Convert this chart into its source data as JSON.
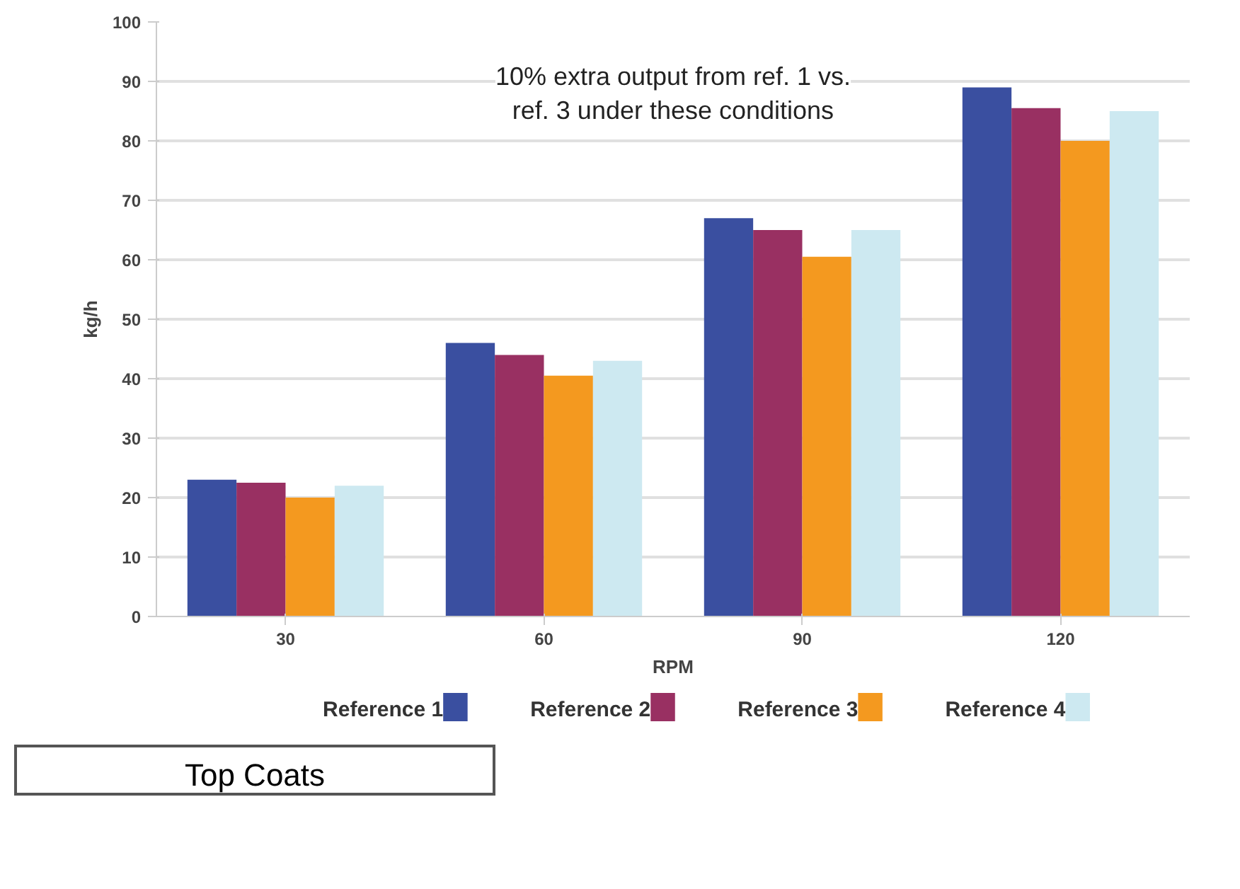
{
  "chart_data": {
    "type": "bar",
    "xlabel": "RPM",
    "ylabel": "kg/h",
    "categories": [
      "30",
      "60",
      "90",
      "120"
    ],
    "series": [
      {
        "name": "Reference 1",
        "color": "#3a4fa0",
        "values": [
          23,
          46,
          67,
          89
        ]
      },
      {
        "name": "Reference 2",
        "color": "#993062",
        "values": [
          22.5,
          44,
          65,
          85.5
        ]
      },
      {
        "name": "Reference 3",
        "color": "#f4991f",
        "values": [
          20,
          40.5,
          60.5,
          80
        ]
      },
      {
        "name": "Reference 4",
        "color": "#cde9f1",
        "values": [
          22,
          43,
          65,
          85
        ]
      }
    ],
    "ylim": [
      0,
      100
    ],
    "yticks": [
      0,
      10,
      20,
      30,
      40,
      50,
      60,
      70,
      80,
      90,
      100
    ],
    "grid": "y",
    "legend": "bottom",
    "annotations": [
      "10% extra output from ref. 1 vs.\nref. 3 under these conditions",
      "Top Coats"
    ]
  }
}
